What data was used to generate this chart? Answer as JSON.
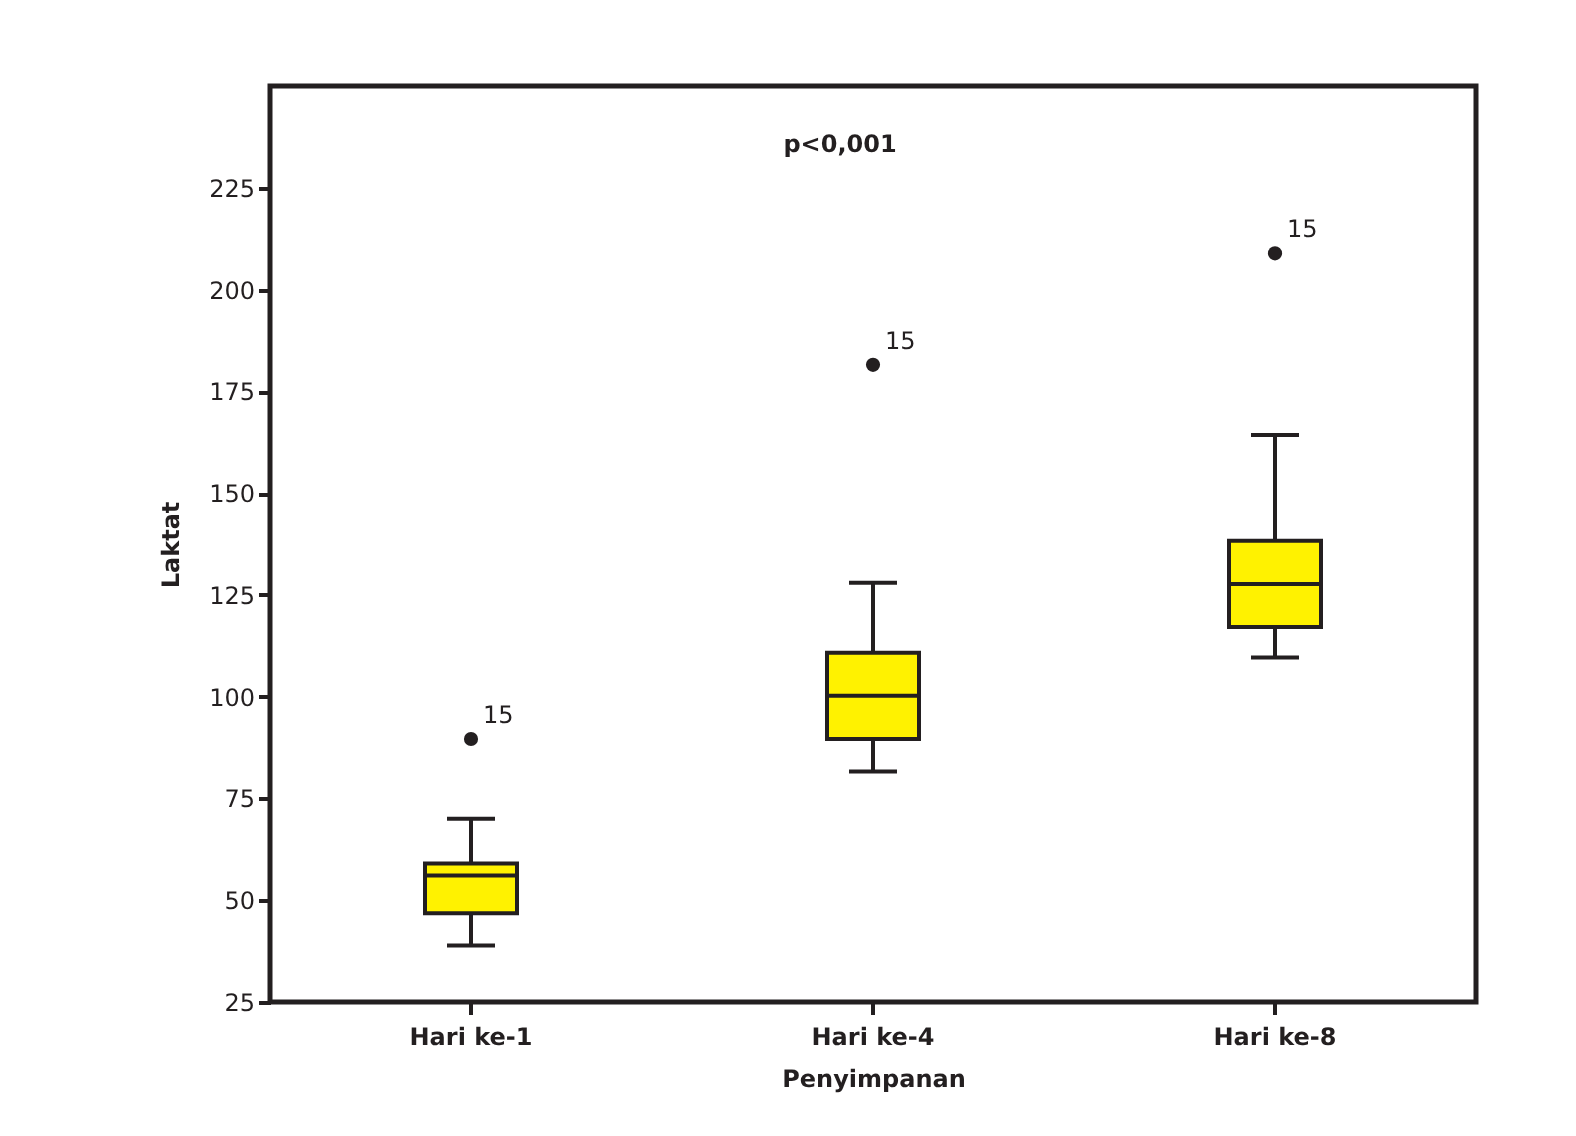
{
  "chart_data": {
    "type": "box",
    "xlabel": "Penyimpanan",
    "ylabel": "Laktat",
    "categories": [
      "Hari ke-1",
      "Hari ke-4",
      "Hari ke-8"
    ],
    "boxes": [
      {
        "low": 38.9,
        "q1": 46.8,
        "median": 56.1,
        "q3": 59.0,
        "high": 70.0,
        "outliers": [
          89.6
        ]
      },
      {
        "low": 81.6,
        "q1": 89.6,
        "median": 100.2,
        "q3": 110.8,
        "high": 128.0,
        "outliers": [
          181.5
        ]
      },
      {
        "low": 109.6,
        "q1": 117.1,
        "median": 127.7,
        "q3": 138.3,
        "high": 164.3,
        "outliers": [
          208.9
        ]
      }
    ],
    "color": "#fff200",
    "ylim": [
      25,
      250
    ],
    "yticks": [
      25,
      50,
      75,
      100,
      125,
      150,
      175,
      200,
      225
    ],
    "grid": false,
    "annotations": [
      "p<0,001",
      "15",
      "15",
      "15"
    ]
  }
}
